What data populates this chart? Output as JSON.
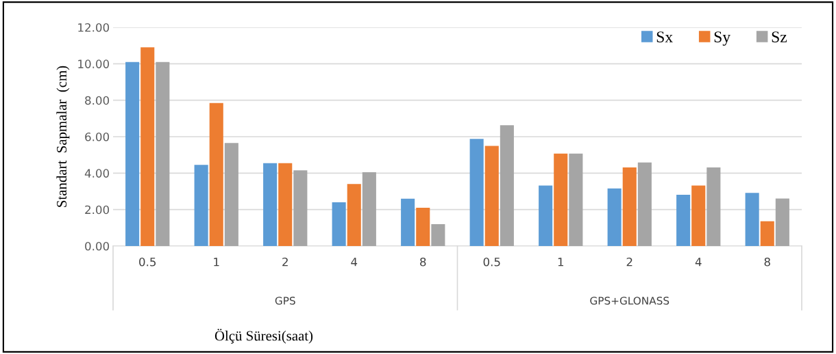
{
  "chart_data": {
    "type": "bar",
    "xlabel": "Ölçü Süresi(saat)",
    "ylabel": "Standart  Sapmalar  (cm)",
    "categories": [
      "0.5",
      "1",
      "2",
      "4",
      "8",
      "0.5",
      "1",
      "2",
      "4",
      "8"
    ],
    "annotations": [
      "GPS",
      "GPS+GLONASS"
    ],
    "series": [
      {
        "name": "Sx",
        "color": "#5b9bd5",
        "values": [
          10.1,
          4.45,
          4.55,
          2.4,
          2.6,
          5.88,
          3.32,
          3.16,
          2.81,
          2.92
        ]
      },
      {
        "name": "Sy",
        "color": "#ed7d31",
        "values": [
          10.9,
          7.85,
          4.55,
          3.4,
          2.1,
          5.49,
          5.07,
          4.31,
          3.32,
          1.36
        ]
      },
      {
        "name": "Sz",
        "color": "#a5a5a5",
        "values": [
          10.1,
          5.65,
          4.15,
          4.05,
          1.2,
          6.63,
          5.07,
          4.58,
          4.31,
          2.61
        ]
      }
    ],
    "ylim": [
      0,
      12
    ],
    "yticks": [
      {
        "value": 0,
        "label": "0.00"
      },
      {
        "value": 2,
        "label": "2.00"
      },
      {
        "value": 4,
        "label": "4.00"
      },
      {
        "value": 6,
        "label": "6.00"
      },
      {
        "value": 8,
        "label": "8.00"
      },
      {
        "value": 10,
        "label": "10.00"
      },
      {
        "value": 12,
        "label": "12.00"
      }
    ],
    "grid": "y",
    "legend": "top right"
  }
}
